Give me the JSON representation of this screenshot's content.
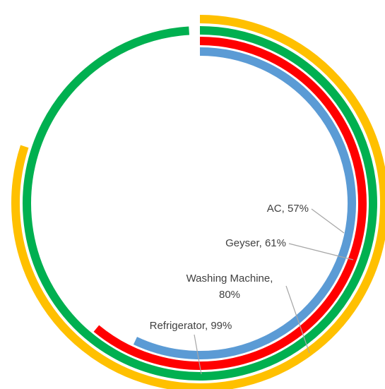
{
  "chart_data": {
    "type": "radial_bar",
    "categories": [
      "AC",
      "Geyser",
      "Refrigerator",
      "Washing Machine"
    ],
    "values": [
      57,
      61,
      99,
      80
    ],
    "value_labels": [
      "AC, 57%",
      "Geyser, 61%",
      "Refrigerator, 99%",
      "Washing Machine, 80%"
    ],
    "colors": [
      "#5b9bd5",
      "#ff0000",
      "#00b050",
      "#ffc000"
    ],
    "max": 100
  }
}
